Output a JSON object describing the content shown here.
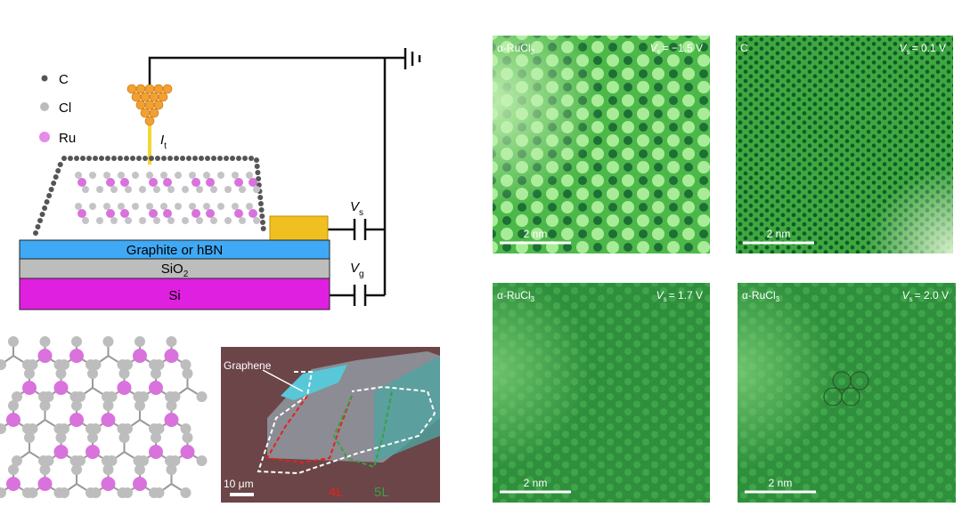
{
  "schematic": {
    "legend": [
      {
        "label": "C"
      },
      {
        "label": "Cl"
      },
      {
        "label": "Ru"
      }
    ],
    "current": {
      "symbol": "I",
      "subscript": "t"
    },
    "sample_bias": {
      "symbol": "V",
      "subscript": "s"
    },
    "gate_bias": {
      "symbol": "V",
      "subscript": "g"
    },
    "layers": [
      {
        "text": "Graphite or hBN"
      },
      {
        "text": "SiO",
        "subscript": "2"
      },
      {
        "text": "Si"
      }
    ]
  },
  "optical_image": {
    "labels": [
      "Graphene",
      "4L",
      "5L"
    ],
    "scale_bar": "10 μm"
  },
  "stm_panels": [
    {
      "material": {
        "text": "α-RuCl",
        "subscript": "3"
      },
      "bias": {
        "symbol": "V",
        "subscript": "s",
        "value": "= −1.5 V"
      },
      "scale_bar": "2 nm"
    },
    {
      "material": {
        "text": "C"
      },
      "bias": {
        "symbol": "V",
        "subscript": "s",
        "value": "= 0.1 V"
      },
      "scale_bar": "2 nm"
    },
    {
      "material": {
        "text": "α-RuCl",
        "subscript": "3"
      },
      "bias": {
        "symbol": "V",
        "subscript": "s",
        "value": "= 1.7 V"
      },
      "scale_bar": "2 nm"
    },
    {
      "material": {
        "text": "α-RuCl",
        "subscript": "3"
      },
      "bias": {
        "symbol": "V",
        "subscript": "s",
        "value": "= 2.0 V"
      },
      "scale_bar": "2 nm"
    }
  ]
}
